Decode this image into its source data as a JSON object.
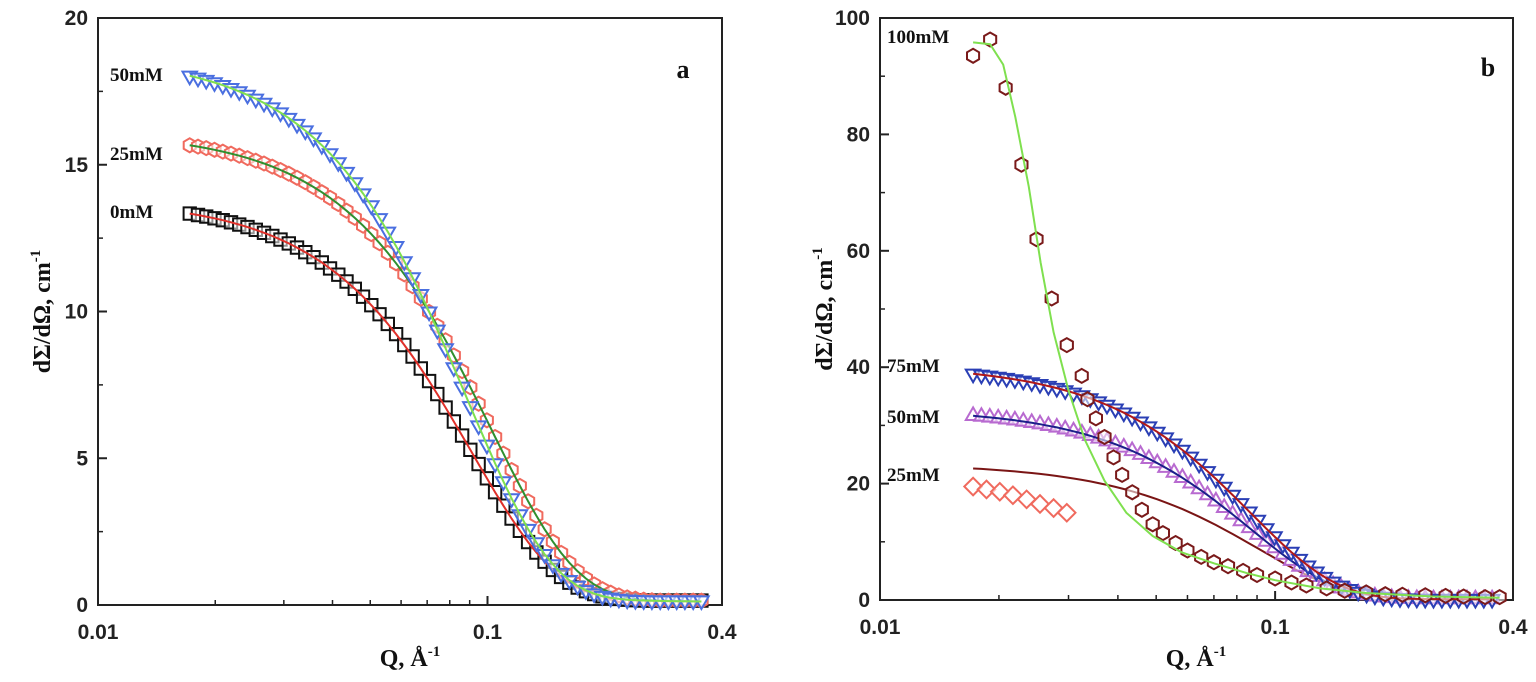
{
  "chart_data": [
    {
      "type": "scatter",
      "panel_label": "a",
      "xlabel": "Q, Å",
      "xlabel_sup": "-1",
      "ylabel": "dΣ/dΩ, cm",
      "ylabel_sup": "-1",
      "x_scale": "log",
      "xlim": [
        0.01,
        0.4
      ],
      "ylim": [
        0,
        20
      ],
      "x_ticks": [
        {
          "v": 0.01,
          "label": "0.01"
        },
        {
          "v": 0.1,
          "label": "0.1"
        },
        {
          "v": 0.4,
          "label": "0.4"
        }
      ],
      "y_ticks": [
        {
          "v": 0,
          "label": "0"
        },
        {
          "v": 5,
          "label": "5"
        },
        {
          "v": 10,
          "label": "10"
        },
        {
          "v": 15,
          "label": "15"
        },
        {
          "v": 20,
          "label": "20"
        }
      ],
      "series": [
        {
          "name": "0mM",
          "marker": "square",
          "color": "#111111",
          "fit_color": "#e0302a",
          "I0": 13.4,
          "Rg": 19
        },
        {
          "name": "25mM",
          "marker": "hexagon",
          "color": "#f06a5e",
          "fit_color": "#2f8f2f",
          "I0": 15.7,
          "Rg": 17
        },
        {
          "name": "50mM",
          "marker": "triangle-down",
          "color": "#4a6fe0",
          "fit_color": "#7fe04f",
          "I0": 18.3,
          "Rg": 19.5
        }
      ]
    },
    {
      "type": "scatter",
      "panel_label": "b",
      "xlabel": "Q, Å",
      "xlabel_sup": "-1",
      "ylabel": "dΣ/dΩ, cm",
      "ylabel_sup": "-1",
      "x_scale": "log",
      "xlim": [
        0.01,
        0.4
      ],
      "ylim": [
        0,
        100
      ],
      "x_ticks": [
        {
          "v": 0.01,
          "label": "0.01"
        },
        {
          "v": 0.1,
          "label": "0.1"
        },
        {
          "v": 0.4,
          "label": "0.4"
        }
      ],
      "y_ticks": [
        {
          "v": 0,
          "label": "0"
        },
        {
          "v": 20,
          "label": "20"
        },
        {
          "v": 40,
          "label": "40"
        },
        {
          "v": 60,
          "label": "60"
        },
        {
          "v": 80,
          "label": "80"
        },
        {
          "v": 100,
          "label": "100"
        }
      ],
      "series": [
        {
          "name": "25mM",
          "marker": "diamond",
          "color": "#f06a5e",
          "fit_color": "#7a1515",
          "I0": 23,
          "Rg": 19,
          "data_override": [
            [
              0.0172,
              19.5
            ],
            [
              0.0186,
              19.0
            ],
            [
              0.0201,
              18.6
            ],
            [
              0.0217,
              18.0
            ],
            [
              0.0235,
              17.3
            ],
            [
              0.0254,
              16.5
            ],
            [
              0.0275,
              15.8
            ],
            [
              0.0297,
              15.0
            ]
          ]
        },
        {
          "name": "50mM",
          "marker": "triangle-up",
          "color": "#b86ad0",
          "fit_color": "#1b1f8a",
          "I0": 32.5,
          "Rg": 20
        },
        {
          "name": "75mM",
          "marker": "triangle-down",
          "color": "#2a3fb5",
          "fit_color": "#b01818",
          "I0": 40,
          "Rg": 20
        },
        {
          "name": "100mM",
          "marker": "hexagon",
          "color": "#7a1a1a",
          "fit_color": "#7fe04f",
          "I0": 96,
          "Rg": 0,
          "fit_override": [
            [
              0.0172,
              95.8
            ],
            [
              0.019,
              95.5
            ],
            [
              0.0205,
              92
            ],
            [
              0.022,
              83
            ],
            [
              0.0238,
              71
            ],
            [
              0.0255,
              58
            ],
            [
              0.0275,
              46
            ],
            [
              0.03,
              36
            ],
            [
              0.033,
              27.5
            ],
            [
              0.037,
              20.5
            ],
            [
              0.042,
              15
            ],
            [
              0.049,
              11
            ],
            [
              0.058,
              8.2
            ],
            [
              0.07,
              6.3
            ],
            [
              0.085,
              4.6
            ],
            [
              0.1,
              3.4
            ],
            [
              0.13,
              2.0
            ],
            [
              0.17,
              1.2
            ],
            [
              0.25,
              0.6
            ],
            [
              0.37,
              0.4
            ]
          ],
          "data_override": [
            [
              0.0172,
              93.5
            ],
            [
              0.019,
              96.3
            ],
            [
              0.0208,
              88
            ],
            [
              0.0228,
              74.8
            ],
            [
              0.0249,
              62
            ],
            [
              0.0272,
              51.8
            ],
            [
              0.0297,
              43.8
            ],
            [
              0.0324,
              38.5
            ],
            [
              0.0335,
              34.5
            ],
            [
              0.0352,
              31.2
            ],
            [
              0.037,
              28
            ],
            [
              0.039,
              24.5
            ],
            [
              0.041,
              21.5
            ],
            [
              0.0435,
              18.5
            ],
            [
              0.046,
              15.5
            ],
            [
              0.049,
              13
            ],
            [
              0.052,
              11.5
            ],
            [
              0.056,
              9.8
            ],
            [
              0.06,
              8.5
            ],
            [
              0.065,
              7.4
            ],
            [
              0.07,
              6.5
            ],
            [
              0.076,
              5.8
            ],
            [
              0.083,
              5.0
            ],
            [
              0.09,
              4.3
            ],
            [
              0.1,
              3.7
            ],
            [
              0.11,
              3.0
            ],
            [
              0.12,
              2.5
            ],
            [
              0.135,
              2.0
            ],
            [
              0.15,
              1.6
            ],
            [
              0.17,
              1.3
            ],
            [
              0.19,
              1.0
            ],
            [
              0.21,
              0.9
            ],
            [
              0.24,
              0.8
            ],
            [
              0.27,
              0.7
            ],
            [
              0.3,
              0.6
            ],
            [
              0.34,
              0.5
            ],
            [
              0.37,
              0.5
            ]
          ]
        }
      ]
    }
  ]
}
